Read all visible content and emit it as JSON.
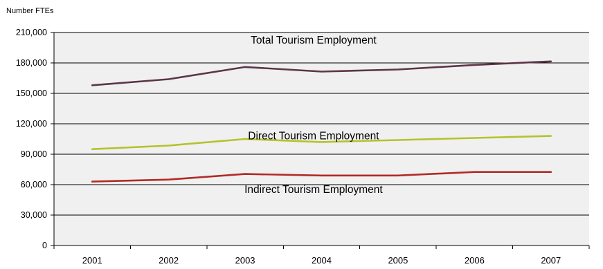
{
  "chart_data": {
    "type": "line",
    "title": "",
    "ylabel": "Number FTEs",
    "xlabel": "",
    "categories": [
      "2001",
      "2002",
      "2003",
      "2004",
      "2005",
      "2006",
      "2007"
    ],
    "ylim": [
      0,
      210000
    ],
    "yticks": [
      0,
      30000,
      60000,
      90000,
      120000,
      150000,
      180000,
      210000
    ],
    "ytick_labels": [
      "0",
      "30,000",
      "60,000",
      "90,000",
      "120,000",
      "150,000",
      "180,000",
      "210,000"
    ],
    "grid": true,
    "plot_background": "#f0f0f0",
    "series": [
      {
        "name": "Total Tourism Employment",
        "color": "#5b3548",
        "values": [
          158000,
          164000,
          176000,
          171500,
          173500,
          178000,
          181500
        ]
      },
      {
        "name": "Direct Tourism Employment",
        "color": "#b5c22b",
        "values": [
          95000,
          98500,
          105000,
          102000,
          104000,
          106000,
          108000
        ]
      },
      {
        "name": "Indirect Tourism Employment",
        "color": "#b22a26",
        "values": [
          63000,
          65000,
          70500,
          69000,
          69000,
          72500,
          72500
        ]
      }
    ]
  }
}
